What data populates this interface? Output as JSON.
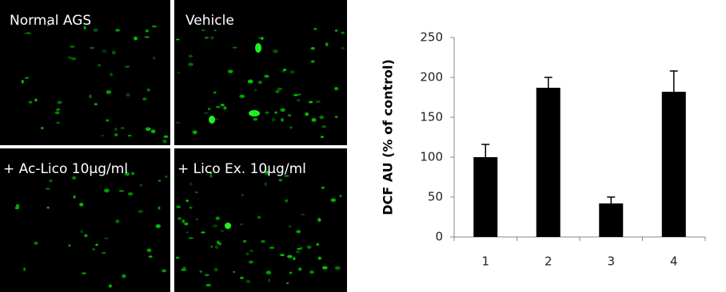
{
  "panels": [
    "Normal AGS",
    "Vehicle",
    "+ Ac-Lico 10μg/ml",
    "+ Lico Ex. 10μg/ml"
  ],
  "chart_data": {
    "type": "bar",
    "y_label": "DCF AU (% of control)",
    "categories": [
      "1",
      "2",
      "3",
      "4"
    ],
    "values": [
      100,
      187,
      42,
      182
    ],
    "errors": [
      16,
      13,
      8,
      26
    ],
    "color": "#000000",
    "ylim": [
      0,
      250
    ],
    "yticks": [
      0,
      50,
      100,
      150,
      200,
      250
    ],
    "grid": false
  }
}
